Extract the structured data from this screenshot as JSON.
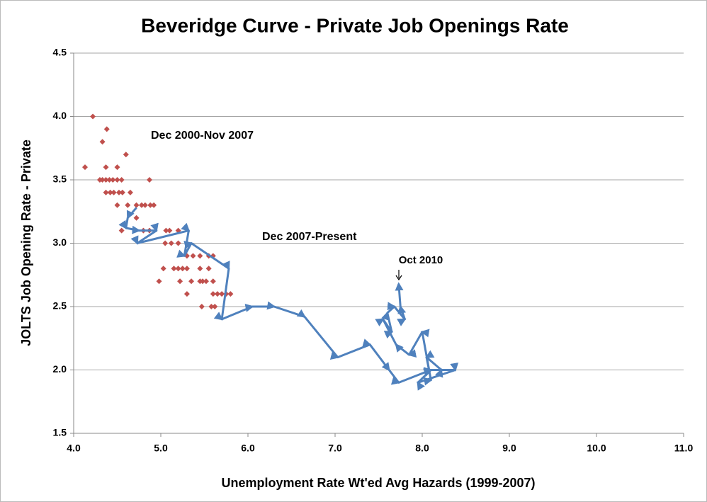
{
  "chart_data": {
    "type": "scatter",
    "title": "Beveridge Curve - Private Job Openings Rate",
    "x_label": "Unemployment Rate Wt'ed Avg Hazards (1999-2007)",
    "y_label": "JOLTS Job Opening Rate - Private",
    "xlim": [
      4.0,
      11.0
    ],
    "ylim": [
      1.5,
      4.5
    ],
    "xticks": [
      {
        "value": 4,
        "label": "4.0"
      },
      {
        "value": 5,
        "label": "5.0"
      },
      {
        "value": 6,
        "label": "6.0"
      },
      {
        "value": 7,
        "label": "7.0"
      },
      {
        "value": 8,
        "label": "8.0"
      },
      {
        "value": 9,
        "label": "9.0"
      },
      {
        "value": 10,
        "label": "10.0"
      },
      {
        "value": 11,
        "label": "11.0"
      }
    ],
    "yticks": [
      1.5,
      {
        "value": 2,
        "label": "2.0"
      },
      2.5,
      {
        "value": 3,
        "label": "3.0"
      },
      3.5,
      {
        "value": 4,
        "label": "4.0"
      },
      4.5
    ],
    "grid": true,
    "series": [
      {
        "name": "Dec 2000-Nov 2007",
        "color": "#c0504d",
        "mode": "markers",
        "x": [
          4.22,
          4.38,
          4.33,
          4.6,
          4.13,
          4.37,
          4.5,
          4.3,
          4.33,
          4.37,
          4.41,
          4.45,
          4.5,
          4.55,
          4.87,
          4.37,
          4.42,
          4.46,
          4.52,
          4.56,
          4.65,
          4.5,
          4.62,
          4.72,
          4.78,
          4.82,
          4.88,
          4.92,
          4.72,
          4.55,
          4.8,
          4.87,
          5.06,
          5.1,
          5.2,
          5.05,
          5.12,
          5.2,
          5.3,
          5.37,
          5.45,
          5.55,
          5.6,
          5.03,
          5.15,
          5.2,
          5.25,
          5.3,
          5.45,
          5.55,
          5.35,
          5.45,
          5.48,
          5.52,
          5.6,
          4.98,
          5.22,
          5.3,
          5.6,
          5.65,
          5.7,
          5.75,
          5.8,
          5.47,
          5.58,
          5.62
        ],
        "values": [
          4.0,
          3.9,
          3.8,
          3.7,
          3.6,
          3.6,
          3.6,
          3.5,
          3.5,
          3.5,
          3.5,
          3.5,
          3.5,
          3.5,
          3.5,
          3.4,
          3.4,
          3.4,
          3.4,
          3.4,
          3.4,
          3.3,
          3.3,
          3.3,
          3.3,
          3.3,
          3.3,
          3.3,
          3.2,
          3.1,
          3.1,
          3.1,
          3.1,
          3.1,
          3.1,
          3.0,
          3.0,
          3.0,
          2.9,
          2.9,
          2.9,
          2.9,
          2.9,
          2.8,
          2.8,
          2.8,
          2.8,
          2.8,
          2.8,
          2.8,
          2.7,
          2.7,
          2.7,
          2.7,
          2.7,
          2.7,
          2.7,
          2.6,
          2.6,
          2.6,
          2.6,
          2.6,
          2.6,
          2.5,
          2.5,
          2.5
        ]
      },
      {
        "name": "Dec 2007-Present",
        "color": "#4f81bd",
        "mode": "lines",
        "x": [
          4.72,
          4.62,
          4.6,
          4.75,
          4.95,
          4.73,
          5.32,
          5.27,
          5.35,
          5.78,
          5.7,
          6.05,
          6.3,
          6.65,
          7.03,
          7.4,
          7.62,
          7.73,
          8.1,
          8.38,
          7.95,
          8.1,
          8.22,
          8.05,
          8.1,
          8.0,
          7.85,
          7.7,
          7.55,
          7.65,
          7.6,
          7.68,
          7.8,
          7.75,
          7.73
        ],
        "values": [
          3.28,
          3.2,
          3.12,
          3.1,
          3.1,
          3.0,
          3.1,
          2.9,
          3.0,
          2.8,
          2.4,
          2.5,
          2.5,
          2.42,
          2.1,
          2.2,
          2.0,
          1.9,
          2.0,
          2.0,
          1.9,
          2.0,
          2.0,
          2.1,
          1.92,
          2.3,
          2.12,
          2.2,
          2.4,
          2.3,
          2.45,
          2.5,
          2.4,
          2.5,
          2.68
        ]
      }
    ],
    "annotations": [
      "Oct 2010"
    ]
  }
}
